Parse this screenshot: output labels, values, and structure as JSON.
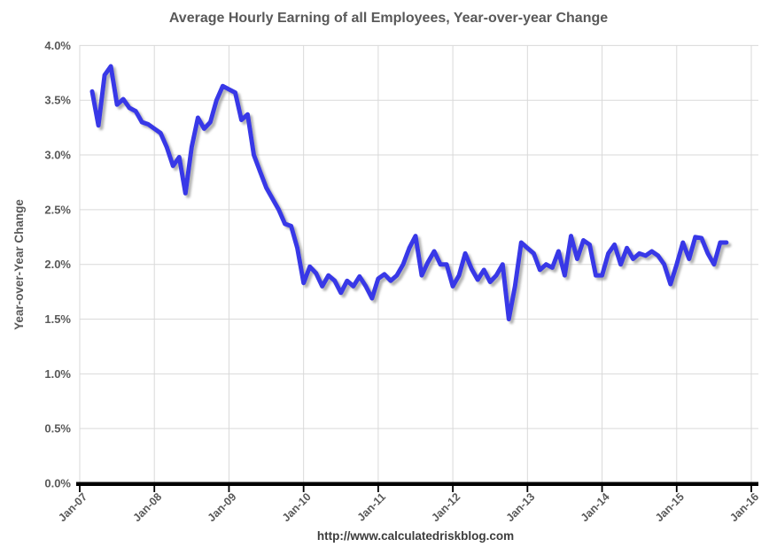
{
  "title": {
    "text": "Average Hourly Earning of all Employees, Year-over-year Change"
  },
  "footer": {
    "text": "http://www.calculatedriskblog.com"
  },
  "y_axis": {
    "title": "Year-over-Year Change",
    "tick_labels": [
      "0.0%",
      "0.5%",
      "1.0%",
      "1.5%",
      "2.0%",
      "2.5%",
      "3.0%",
      "3.5%",
      "4.0%"
    ]
  },
  "x_axis": {
    "tick_labels": [
      "Jan-07",
      "Jan-08",
      "Jan-09",
      "Jan-10",
      "Jan-11",
      "Jan-12",
      "Jan-13",
      "Jan-14",
      "Jan-15",
      "Jan-16"
    ]
  },
  "colors": {
    "line": "#3737e7",
    "line_shadow": "#9a9a9a",
    "gridline": "#d9d9d9",
    "axis": "#000000",
    "tick_text": "#595959",
    "footer_text": "#3d3d3d",
    "background": "#ffffff"
  },
  "chart_data": {
    "type": "line",
    "title": "Average Hourly Earning of all Employees, Year-over-year Change",
    "xlabel": "",
    "ylabel": "Year-over-Year Change",
    "ylim": [
      0.0,
      4.0
    ],
    "ytick_step": 0.5,
    "grid": true,
    "legend": false,
    "x_tick_labels": [
      "Jan-07",
      "Jan-08",
      "Jan-09",
      "Jan-10",
      "Jan-11",
      "Jan-12",
      "Jan-13",
      "Jan-14",
      "Jan-15",
      "Jan-16"
    ],
    "frequency": "monthly",
    "x_start": "Mar-2007",
    "x_end": "Sep-2015",
    "unit": "percent",
    "series": [
      {
        "name": "Average Hourly Earnings, Year-over-year % Change",
        "color": "#3737e7",
        "start_month_offset_from_jan07": 2,
        "values": [
          3.58,
          3.27,
          3.73,
          3.81,
          3.46,
          3.51,
          3.43,
          3.4,
          3.3,
          3.28,
          3.24,
          3.2,
          3.07,
          2.9,
          2.98,
          2.65,
          3.07,
          3.34,
          3.24,
          3.3,
          3.5,
          3.63,
          3.6,
          3.57,
          3.32,
          3.37,
          3.0,
          2.85,
          2.7,
          2.6,
          2.5,
          2.37,
          2.35,
          2.15,
          1.83,
          1.98,
          1.92,
          1.8,
          1.9,
          1.85,
          1.74,
          1.85,
          1.8,
          1.89,
          1.8,
          1.69,
          1.87,
          1.91,
          1.85,
          1.9,
          2.0,
          2.15,
          2.26,
          1.9,
          2.02,
          2.12,
          2.0,
          2.0,
          1.8,
          1.9,
          2.1,
          1.96,
          1.86,
          1.95,
          1.84,
          1.9,
          2.0,
          1.5,
          1.8,
          2.2,
          2.15,
          2.1,
          1.95,
          2.0,
          1.97,
          2.12,
          1.9,
          2.26,
          2.05,
          2.22,
          2.18,
          1.9,
          1.9,
          2.1,
          2.18,
          2.0,
          2.15,
          2.05,
          2.1,
          2.08,
          2.12,
          2.08,
          2.0,
          1.82,
          2.0,
          2.2,
          2.05,
          2.25,
          2.24,
          2.1,
          2.0,
          2.2,
          2.2
        ]
      }
    ]
  }
}
